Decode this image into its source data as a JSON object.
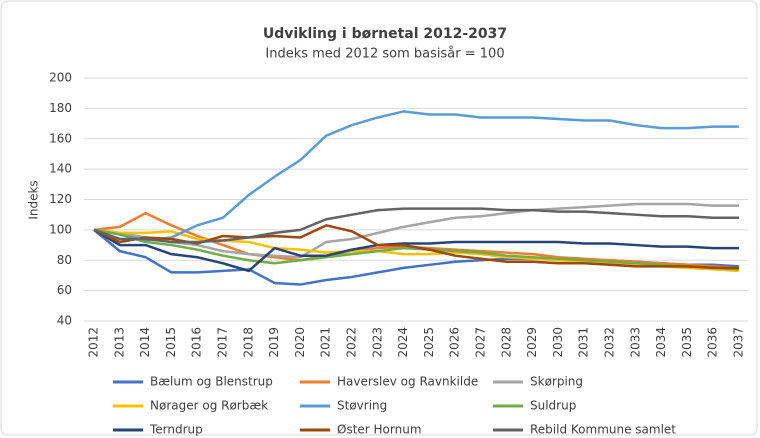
{
  "chart_data": {
    "type": "line",
    "title": "Udvikling  i børnetal 2012-2037",
    "subtitle": "Indeks med 2012 som basisår = 100",
    "y_label": "Indeks",
    "categories": [
      "2012",
      "2013",
      "2014",
      "2015",
      "2016",
      "2017",
      "2018",
      "2019",
      "2020",
      "2021",
      "2022",
      "2023",
      "2024",
      "2025",
      "2026",
      "2027",
      "2028",
      "2029",
      "2030",
      "2031",
      "2032",
      "2033",
      "2034",
      "2035",
      "2036",
      "2037"
    ],
    "ylim": [
      40,
      200
    ],
    "yticks": [
      40,
      60,
      80,
      100,
      120,
      140,
      160,
      180,
      200
    ],
    "grid": true,
    "legend": "bottom",
    "series": [
      {
        "name": "Bælum og Blenstrup",
        "color": "#4472c4",
        "values": [
          100,
          86,
          82,
          72,
          72,
          73,
          74,
          65,
          64,
          67,
          69,
          72,
          75,
          77,
          79,
          80,
          81,
          81,
          81,
          80,
          80,
          79,
          78,
          77,
          77,
          76
        ]
      },
      {
        "name": "Haverslev og Ravnkilde",
        "color": "#ed7d31",
        "values": [
          100,
          102,
          111,
          103,
          96,
          90,
          84,
          82,
          80,
          83,
          86,
          88,
          89,
          88,
          87,
          86,
          85,
          84,
          82,
          81,
          80,
          79,
          78,
          77,
          76,
          75
        ]
      },
      {
        "name": "Skørping",
        "color": "#a5a5a5",
        "values": [
          100,
          98,
          95,
          92,
          90,
          86,
          84,
          83,
          82,
          92,
          94,
          98,
          102,
          105,
          108,
          109,
          111,
          113,
          114,
          115,
          116,
          117,
          117,
          117,
          116,
          116
        ]
      },
      {
        "name": "Nørager og Rørbæk",
        "color": "#ffc000",
        "values": [
          100,
          98,
          98,
          99,
          94,
          93,
          92,
          88,
          87,
          85,
          86,
          86,
          84,
          84,
          85,
          84,
          82,
          81,
          80,
          79,
          78,
          77,
          76,
          75,
          74,
          73
        ]
      },
      {
        "name": "Støvring",
        "color": "#5b9bd5",
        "values": [
          100,
          97,
          93,
          95,
          103,
          108,
          123,
          135,
          146,
          162,
          169,
          174,
          178,
          176,
          176,
          174,
          174,
          174,
          173,
          172,
          172,
          169,
          167,
          167,
          168,
          168
        ]
      },
      {
        "name": "Suldrup",
        "color": "#70ad47",
        "values": [
          100,
          97,
          92,
          90,
          87,
          83,
          80,
          78,
          80,
          82,
          84,
          86,
          88,
          87,
          86,
          85,
          83,
          82,
          81,
          80,
          79,
          78,
          77,
          76,
          75,
          74
        ]
      },
      {
        "name": "Terndrup",
        "color": "#264478",
        "values": [
          100,
          90,
          90,
          84,
          82,
          78,
          73,
          88,
          83,
          83,
          87,
          90,
          91,
          91,
          92,
          92,
          92,
          92,
          92,
          91,
          91,
          90,
          89,
          89,
          88,
          88
        ]
      },
      {
        "name": "Øster Hornum",
        "color": "#9e480e",
        "values": [
          100,
          92,
          95,
          94,
          91,
          96,
          95,
          96,
          95,
          103,
          99,
          90,
          90,
          87,
          83,
          81,
          79,
          79,
          78,
          78,
          77,
          76,
          76,
          76,
          75,
          75
        ]
      },
      {
        "name": "Rebild Kommune samlet",
        "color": "#636363",
        "values": [
          100,
          94,
          94,
          92,
          92,
          93,
          95,
          98,
          100,
          107,
          110,
          113,
          114,
          114,
          114,
          114,
          113,
          113,
          112,
          112,
          111,
          110,
          109,
          109,
          108,
          108
        ]
      }
    ]
  }
}
